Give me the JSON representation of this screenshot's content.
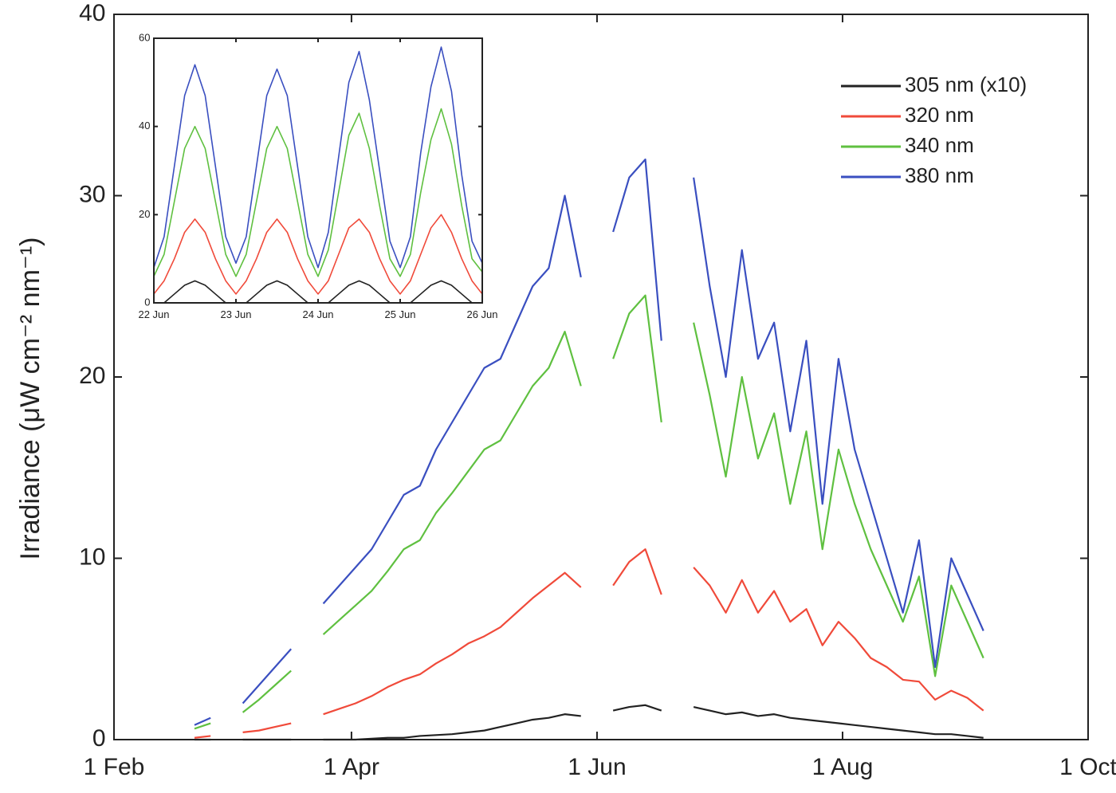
{
  "chart_data": [
    {
      "type": "line",
      "ylabel": "Irradiance (μW cm⁻² nm⁻¹)",
      "x": [
        "21 Feb",
        "25 Feb",
        "1 Mar",
        "5 Mar",
        "9 Mar",
        "13 Mar",
        "17 Mar",
        "21 Mar",
        "25 Mar",
        "29 Mar",
        "2 Apr",
        "6 Apr",
        "10 Apr",
        "14 Apr",
        "18 Apr",
        "22 Apr",
        "26 Apr",
        "30 Apr",
        "4 May",
        "8 May",
        "12 May",
        "16 May",
        "20 May",
        "24 May",
        "28 May",
        "1 Jun",
        "5 Jun",
        "9 Jun",
        "13 Jun",
        "17 Jun",
        "21 Jun",
        "25 Jun",
        "29 Jun",
        "3 Jul",
        "7 Jul",
        "11 Jul",
        "15 Jul",
        "19 Jul",
        "23 Jul",
        "27 Jul",
        "31 Jul",
        "4 Aug",
        "8 Aug",
        "12 Aug",
        "16 Aug",
        "20 Aug",
        "24 Aug",
        "28 Aug",
        "1 Sep",
        "5 Sep"
      ],
      "series": [
        {
          "name": "305 nm (x10)",
          "color": "#222222",
          "values": [
            0,
            0,
            null,
            0,
            0,
            0,
            0,
            null,
            0,
            0,
            0,
            0.05,
            0.1,
            0.1,
            0.2,
            0.25,
            0.3,
            0.4,
            0.5,
            0.7,
            0.9,
            1.1,
            1.2,
            1.4,
            1.3,
            null,
            1.6,
            1.8,
            1.9,
            1.6,
            null,
            1.8,
            1.6,
            1.4,
            1.5,
            1.3,
            1.4,
            1.2,
            1.1,
            1.0,
            0.9,
            0.8,
            0.7,
            0.6,
            0.5,
            0.4,
            0.3,
            0.3,
            0.2,
            0.1
          ]
        },
        {
          "name": "320 nm",
          "color": "#f04a3a",
          "values": [
            0.1,
            0.2,
            null,
            0.4,
            0.5,
            0.7,
            0.9,
            null,
            1.4,
            1.7,
            2.0,
            2.4,
            2.9,
            3.3,
            3.6,
            4.2,
            4.7,
            5.3,
            5.7,
            6.2,
            7.0,
            7.8,
            8.5,
            9.2,
            8.4,
            null,
            8.5,
            9.8,
            10.5,
            8.0,
            null,
            9.5,
            8.5,
            7.0,
            8.8,
            7.0,
            8.2,
            6.5,
            7.2,
            5.2,
            6.5,
            5.6,
            4.5,
            4.0,
            3.3,
            3.2,
            2.2,
            2.7,
            2.3,
            1.6
          ]
        },
        {
          "name": "340 nm",
          "color": "#5fc040",
          "values": [
            0.6,
            0.9,
            null,
            1.5,
            2.2,
            3.0,
            3.8,
            null,
            5.8,
            6.6,
            7.4,
            8.2,
            9.3,
            10.5,
            11.0,
            12.5,
            13.6,
            14.8,
            16.0,
            16.5,
            18.0,
            19.5,
            20.5,
            22.5,
            19.5,
            null,
            21.0,
            23.5,
            24.5,
            17.5,
            null,
            23.0,
            19.0,
            14.5,
            20.0,
            15.5,
            18.0,
            13.0,
            17.0,
            10.5,
            16.0,
            13.0,
            10.5,
            8.5,
            6.5,
            9.0,
            3.5,
            8.5,
            6.5,
            4.5
          ]
        },
        {
          "name": "380 nm",
          "color": "#3a4fc0",
          "values": [
            0.8,
            1.2,
            null,
            2.0,
            3.0,
            4.0,
            5.0,
            null,
            7.5,
            8.5,
            9.5,
            10.5,
            12.0,
            13.5,
            14.0,
            16.0,
            17.5,
            19.0,
            20.5,
            21.0,
            23.0,
            25.0,
            26.0,
            30.0,
            25.5,
            null,
            28.0,
            31.0,
            32.0,
            22.0,
            null,
            31.0,
            25.0,
            20.0,
            27.0,
            21.0,
            23.0,
            17.0,
            22.0,
            13.0,
            21.0,
            16.0,
            13.0,
            10.0,
            7.0,
            11.0,
            4.0,
            10.0,
            8.0,
            6.0
          ]
        }
      ],
      "xlim": [
        "1 Feb",
        "1 Oct"
      ],
      "xticks": [
        "1 Feb",
        "1 Apr",
        "1 Jun",
        "1 Aug",
        "1 Oct"
      ],
      "ylim": [
        0,
        40
      ],
      "yticks": [
        0,
        10,
        20,
        30,
        40
      ],
      "legend": "upper right"
    },
    {
      "type": "line",
      "x": [
        22,
        22.125,
        22.25,
        22.375,
        22.5,
        22.625,
        22.75,
        22.875,
        23,
        23.125,
        23.25,
        23.375,
        23.5,
        23.625,
        23.75,
        23.875,
        24,
        24.125,
        24.25,
        24.375,
        24.5,
        24.625,
        24.75,
        24.875,
        25,
        25.125,
        25.25,
        25.375,
        25.5,
        25.625,
        25.75,
        25.875,
        26
      ],
      "series": [
        {
          "name": "305 nm (x10)",
          "color": "#222222",
          "values": [
            0,
            0,
            2,
            4,
            5,
            4,
            2,
            0,
            0,
            0,
            2,
            4,
            5,
            4,
            2,
            0,
            0,
            0,
            2,
            4,
            5,
            4,
            2,
            0,
            0,
            0,
            2,
            4,
            5,
            4,
            2,
            0,
            0
          ]
        },
        {
          "name": "320 nm",
          "color": "#f04a3a",
          "values": [
            2,
            5,
            10,
            16,
            19,
            16,
            10,
            5,
            2,
            5,
            10,
            16,
            19,
            16,
            10,
            5,
            2,
            5,
            11,
            17,
            19,
            16,
            10,
            5,
            2,
            5,
            11,
            17,
            20,
            16,
            10,
            5,
            2
          ]
        },
        {
          "name": "340 nm",
          "color": "#5fc040",
          "values": [
            6,
            11,
            23,
            35,
            40,
            35,
            23,
            11,
            6,
            11,
            23,
            35,
            40,
            35,
            23,
            11,
            6,
            12,
            25,
            38,
            43,
            35,
            22,
            10,
            6,
            11,
            25,
            37,
            44,
            36,
            22,
            10,
            7
          ]
        },
        {
          "name": "380 nm",
          "color": "#3a4fc0",
          "values": [
            8,
            15,
            31,
            47,
            54,
            47,
            31,
            15,
            9,
            15,
            31,
            47,
            53,
            47,
            31,
            15,
            8,
            16,
            33,
            50,
            57,
            46,
            30,
            14,
            8,
            15,
            34,
            49,
            58,
            48,
            29,
            14,
            9
          ]
        }
      ],
      "xlim": [
        22,
        26
      ],
      "xticks": [
        {
          "value": 22,
          "label": "22 Jun"
        },
        {
          "value": 23,
          "label": "23 Jun"
        },
        {
          "value": 24,
          "label": "24 Jun"
        },
        {
          "value": 25,
          "label": "25 Jun"
        },
        {
          "value": 26,
          "label": "26 Jun"
        }
      ],
      "ylim": [
        0,
        60
      ],
      "yticks": [
        0,
        20,
        40,
        60
      ]
    }
  ]
}
